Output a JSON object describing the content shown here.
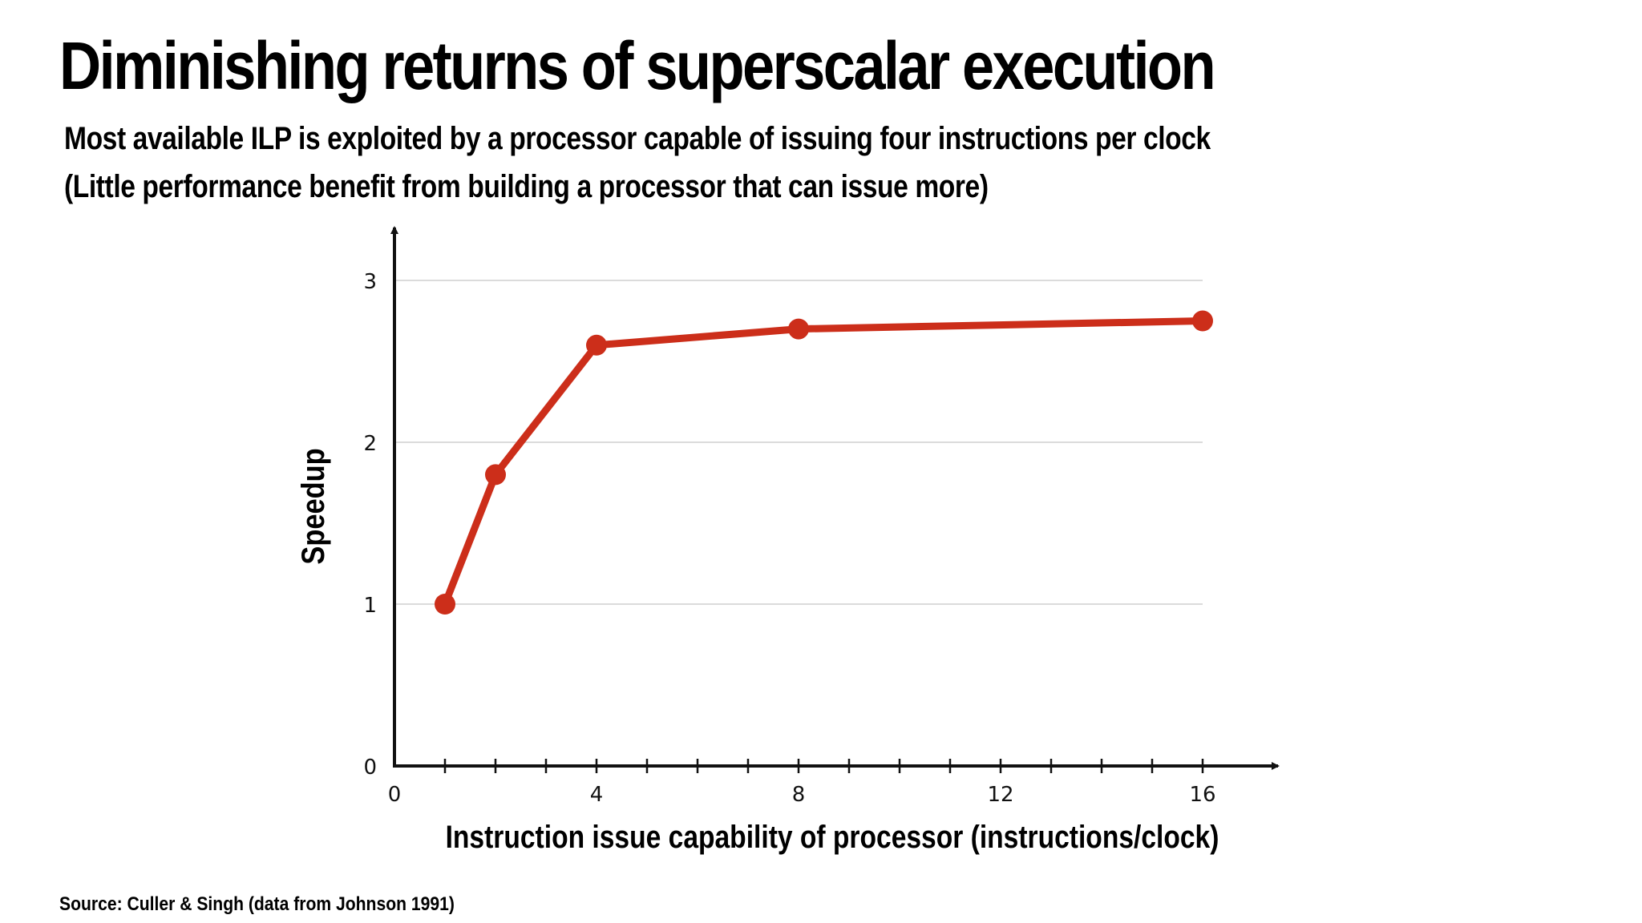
{
  "slide": {
    "title": "Diminishing returns of superscalar execution",
    "subtitle_line1": "Most available ILP is exploited by a processor capable of issuing four instructions per clock",
    "subtitle_line2": "(Little performance benefit from building a processor that can issue more)",
    "source": "Source: Culler & Singh (data from Johnson 1991)"
  },
  "chart_data": {
    "type": "line",
    "title": "",
    "xlabel": "Instruction issue capability of processor (instructions/clock)",
    "ylabel": "Speedup",
    "xlim": [
      0,
      16
    ],
    "ylim": [
      0,
      3
    ],
    "x_ticks": [
      0,
      4,
      8,
      12,
      16
    ],
    "x_minor_ticks": [
      1,
      2,
      3,
      4,
      5,
      6,
      7,
      8,
      9,
      10,
      11,
      12,
      13,
      14,
      15,
      16
    ],
    "y_ticks": [
      0,
      1,
      2,
      3
    ],
    "grid": "horizontal",
    "legend": "none",
    "series": [
      {
        "x": [
          1,
          2,
          4,
          8,
          16
        ],
        "y": [
          1.0,
          1.8,
          2.6,
          2.7,
          2.75
        ]
      }
    ],
    "colors": {
      "line": "#cc2e1a",
      "axis": "#111111",
      "grid": "#cfcfcf"
    }
  }
}
